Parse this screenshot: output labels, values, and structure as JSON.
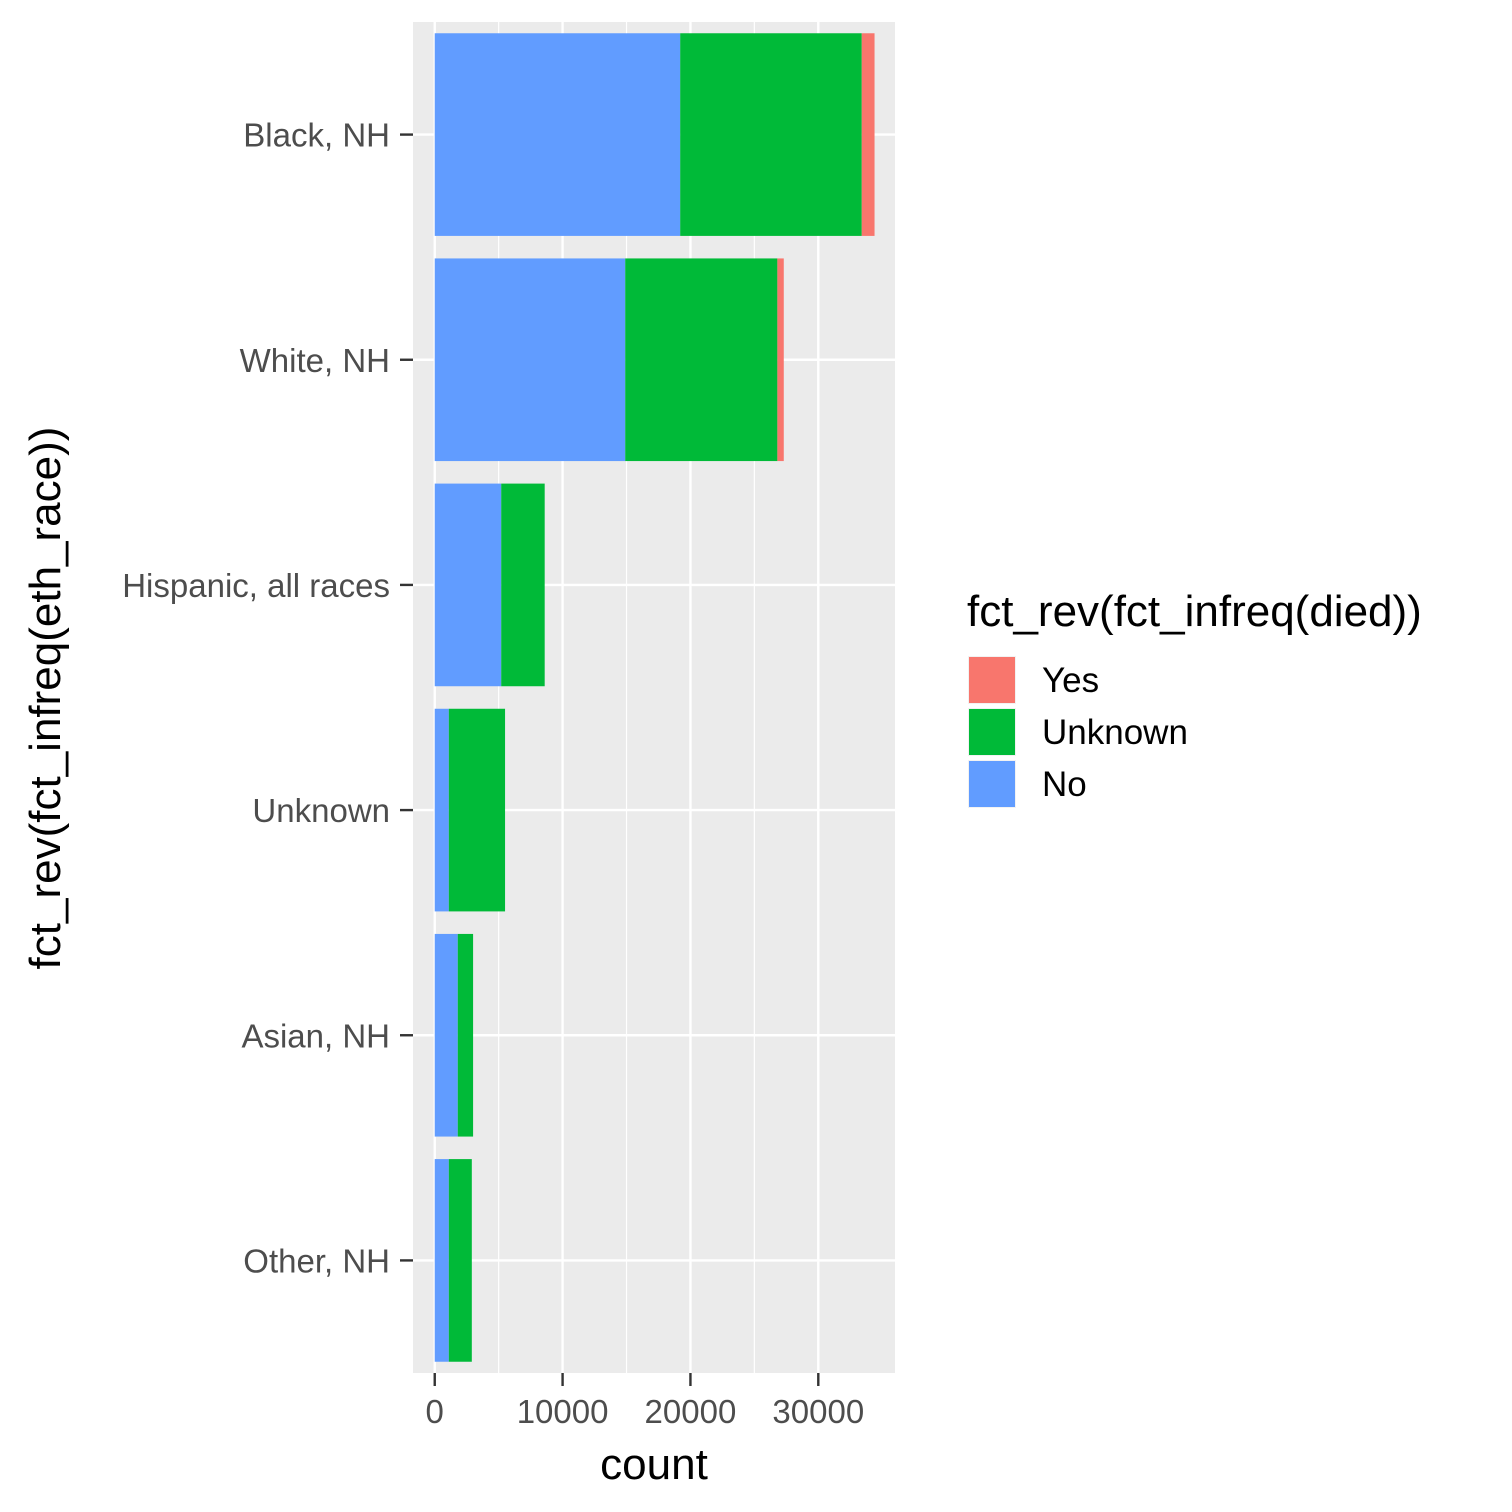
{
  "chart_data": {
    "type": "bar",
    "orientation": "horizontal",
    "stacked": true,
    "categories": [
      "Black, NH",
      "White, NH",
      "Hispanic, all races",
      "Unknown",
      "Asian, NH",
      "Other, NH"
    ],
    "series": [
      {
        "name": "No",
        "color": "#619CFF",
        "values": [
          19200,
          14900,
          5200,
          1100,
          1800,
          1100
        ]
      },
      {
        "name": "Unknown",
        "color": "#00BA38",
        "values": [
          14200,
          11900,
          3400,
          4400,
          1200,
          1800
        ]
      },
      {
        "name": "Yes",
        "color": "#F8766D",
        "values": [
          1000,
          500,
          0,
          0,
          0,
          0
        ]
      }
    ],
    "xlabel": "count",
    "ylabel": "fct_rev(fct_infreq(eth_race))",
    "xlim": [
      -1700,
      36000
    ],
    "xticks": [
      0,
      10000,
      20000,
      30000
    ],
    "xtick_labels": [
      "0",
      "10000",
      "20000",
      "30000"
    ],
    "grid": true,
    "legend": {
      "title": "fct_rev(fct_infreq(died))",
      "position": "right",
      "items": [
        {
          "label": "Yes",
          "color": "#F8766D"
        },
        {
          "label": "Unknown",
          "color": "#00BA38"
        },
        {
          "label": "No",
          "color": "#619CFF"
        }
      ]
    }
  }
}
